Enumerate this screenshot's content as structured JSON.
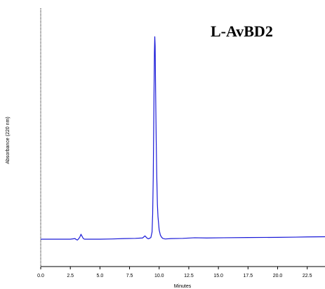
{
  "chart_data": {
    "type": "line",
    "title": "L-AvBD2",
    "xlabel": "Minutes",
    "ylabel": "Absorbance (220 nm)",
    "xlim": [
      0.0,
      24.0
    ],
    "ylim": [
      0,
      100
    ],
    "x_ticks": [
      "0.0",
      "2.5",
      "5.0",
      "7.5",
      "10.0",
      "12.5",
      "15.0",
      "17.5",
      "20.0",
      "22.5"
    ],
    "grid": false,
    "series": [
      {
        "color": "#1a1ad8",
        "x": [
          0.0,
          2.5,
          2.9,
          3.0,
          3.1,
          3.2,
          3.3,
          3.4,
          3.5,
          3.6,
          3.7,
          4.0,
          5.0,
          6.0,
          7.0,
          8.0,
          8.6,
          8.8,
          8.9,
          9.0,
          9.1,
          9.2,
          9.3,
          9.4,
          9.45,
          9.5,
          9.55,
          9.6,
          9.63,
          9.66,
          9.7,
          9.75,
          9.8,
          9.85,
          9.9,
          10.0,
          10.1,
          10.2,
          10.3,
          10.5,
          11.0,
          12.0,
          13.0,
          14.0,
          15.5,
          17.5,
          20.0,
          21.5,
          22.5,
          24.0
        ],
        "y": [
          0.0,
          0.0,
          0.3,
          -0.2,
          -0.4,
          0.2,
          1.0,
          2.4,
          1.3,
          0.3,
          0.0,
          0.0,
          0.0,
          0.1,
          0.3,
          0.4,
          0.6,
          1.6,
          1.0,
          0.4,
          0.2,
          0.5,
          0.8,
          3.5,
          12.0,
          30.0,
          62.0,
          91.0,
          98.5,
          94.0,
          72.0,
          48.0,
          30.0,
          17.0,
          11.0,
          4.5,
          2.0,
          1.0,
          0.4,
          0.1,
          0.3,
          0.4,
          0.7,
          0.6,
          0.7,
          0.8,
          0.9,
          1.0,
          1.1,
          1.2
        ]
      }
    ]
  }
}
